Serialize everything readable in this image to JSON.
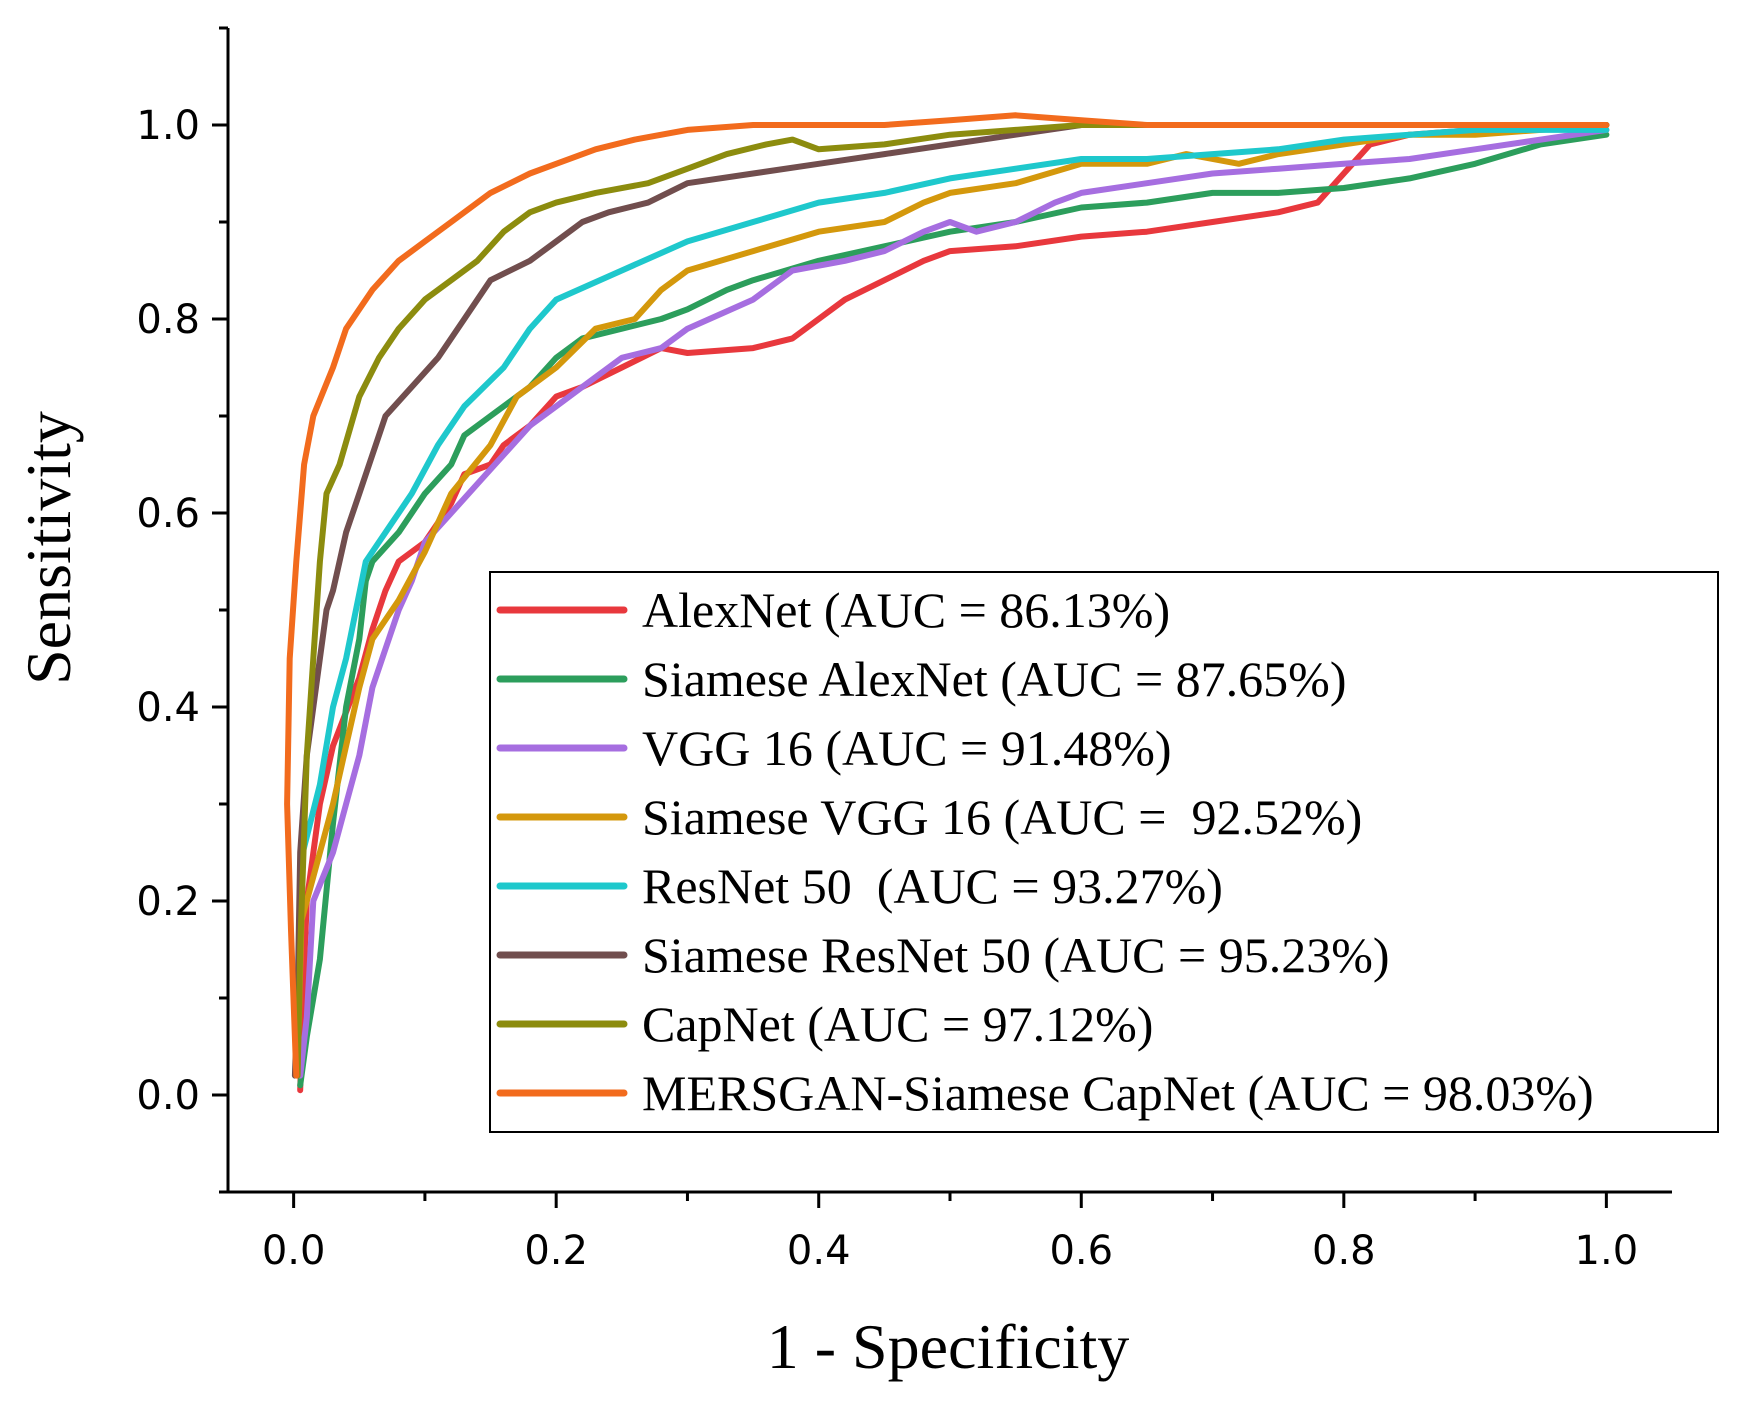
{
  "chart_data": {
    "type": "line",
    "title": "",
    "xlabel": "1 - Specificity",
    "ylabel": "Sensitivity",
    "xlim": [
      -0.05,
      1.05
    ],
    "ylim": [
      -0.1,
      1.1
    ],
    "xticks": [
      0.0,
      0.2,
      0.4,
      0.6,
      0.8,
      1.0
    ],
    "yticks": [
      0.0,
      0.2,
      0.4,
      0.6,
      0.8,
      1.0
    ],
    "xtick_labels": [
      "0.0",
      "0.2",
      "0.4",
      "0.6",
      "0.8",
      "1.0"
    ],
    "ytick_labels": [
      "0.0",
      "0.2",
      "0.4",
      "0.6",
      "0.8",
      "1.0"
    ],
    "grid": false,
    "legend_position": "center-right",
    "series": [
      {
        "name": "AlexNet (AUC = 86.13%)",
        "color": "#e8383d",
        "points": [
          [
            0.005,
            0.005
          ],
          [
            0.007,
            0.1
          ],
          [
            0.01,
            0.2
          ],
          [
            0.02,
            0.3
          ],
          [
            0.03,
            0.36
          ],
          [
            0.05,
            0.43
          ],
          [
            0.06,
            0.48
          ],
          [
            0.07,
            0.52
          ],
          [
            0.08,
            0.55
          ],
          [
            0.1,
            0.57
          ],
          [
            0.12,
            0.61
          ],
          [
            0.13,
            0.64
          ],
          [
            0.15,
            0.65
          ],
          [
            0.16,
            0.67
          ],
          [
            0.18,
            0.69
          ],
          [
            0.2,
            0.72
          ],
          [
            0.22,
            0.73
          ],
          [
            0.25,
            0.75
          ],
          [
            0.28,
            0.77
          ],
          [
            0.3,
            0.765
          ],
          [
            0.35,
            0.77
          ],
          [
            0.38,
            0.78
          ],
          [
            0.4,
            0.8
          ],
          [
            0.42,
            0.82
          ],
          [
            0.45,
            0.84
          ],
          [
            0.48,
            0.86
          ],
          [
            0.5,
            0.87
          ],
          [
            0.55,
            0.875
          ],
          [
            0.6,
            0.885
          ],
          [
            0.65,
            0.89
          ],
          [
            0.7,
            0.9
          ],
          [
            0.75,
            0.91
          ],
          [
            0.78,
            0.92
          ],
          [
            0.8,
            0.95
          ],
          [
            0.82,
            0.98
          ],
          [
            0.85,
            0.99
          ],
          [
            0.9,
            0.995
          ],
          [
            1.0,
            1.0
          ]
        ]
      },
      {
        "name": "Siamese AlexNet (AUC = 87.65%)",
        "color": "#2c9e5c",
        "points": [
          [
            0.005,
            0.01
          ],
          [
            0.01,
            0.06
          ],
          [
            0.02,
            0.14
          ],
          [
            0.03,
            0.28
          ],
          [
            0.04,
            0.4
          ],
          [
            0.05,
            0.47
          ],
          [
            0.055,
            0.53
          ],
          [
            0.06,
            0.55
          ],
          [
            0.08,
            0.58
          ],
          [
            0.1,
            0.62
          ],
          [
            0.12,
            0.65
          ],
          [
            0.13,
            0.68
          ],
          [
            0.15,
            0.7
          ],
          [
            0.18,
            0.73
          ],
          [
            0.2,
            0.76
          ],
          [
            0.22,
            0.78
          ],
          [
            0.25,
            0.79
          ],
          [
            0.28,
            0.8
          ],
          [
            0.3,
            0.81
          ],
          [
            0.33,
            0.83
          ],
          [
            0.35,
            0.84
          ],
          [
            0.4,
            0.86
          ],
          [
            0.45,
            0.875
          ],
          [
            0.5,
            0.89
          ],
          [
            0.55,
            0.9
          ],
          [
            0.6,
            0.915
          ],
          [
            0.65,
            0.92
          ],
          [
            0.7,
            0.93
          ],
          [
            0.75,
            0.93
          ],
          [
            0.8,
            0.935
          ],
          [
            0.85,
            0.945
          ],
          [
            0.9,
            0.96
          ],
          [
            0.95,
            0.98
          ],
          [
            1.0,
            0.99
          ]
        ]
      },
      {
        "name": "VGG 16 (AUC = 91.48%)",
        "color": "#a66ee0",
        "points": [
          [
            0.005,
            0.02
          ],
          [
            0.01,
            0.08
          ],
          [
            0.015,
            0.2
          ],
          [
            0.03,
            0.25
          ],
          [
            0.04,
            0.3
          ],
          [
            0.05,
            0.35
          ],
          [
            0.06,
            0.42
          ],
          [
            0.07,
            0.46
          ],
          [
            0.08,
            0.5
          ],
          [
            0.09,
            0.53
          ],
          [
            0.1,
            0.57
          ],
          [
            0.12,
            0.6
          ],
          [
            0.14,
            0.63
          ],
          [
            0.16,
            0.66
          ],
          [
            0.18,
            0.69
          ],
          [
            0.2,
            0.71
          ],
          [
            0.22,
            0.73
          ],
          [
            0.25,
            0.76
          ],
          [
            0.28,
            0.77
          ],
          [
            0.3,
            0.79
          ],
          [
            0.35,
            0.82
          ],
          [
            0.38,
            0.85
          ],
          [
            0.42,
            0.86
          ],
          [
            0.45,
            0.87
          ],
          [
            0.48,
            0.89
          ],
          [
            0.5,
            0.9
          ],
          [
            0.52,
            0.89
          ],
          [
            0.55,
            0.9
          ],
          [
            0.58,
            0.92
          ],
          [
            0.6,
            0.93
          ],
          [
            0.65,
            0.94
          ],
          [
            0.7,
            0.95
          ],
          [
            0.75,
            0.955
          ],
          [
            0.8,
            0.96
          ],
          [
            0.85,
            0.965
          ],
          [
            0.9,
            0.975
          ],
          [
            0.95,
            0.985
          ],
          [
            1.0,
            0.995
          ]
        ]
      },
      {
        "name": "Siamese VGG 16 (AUC =  92.52%)",
        "color": "#d4980c",
        "points": [
          [
            0.003,
            0.03
          ],
          [
            0.006,
            0.18
          ],
          [
            0.02,
            0.25
          ],
          [
            0.03,
            0.3
          ],
          [
            0.04,
            0.36
          ],
          [
            0.05,
            0.42
          ],
          [
            0.06,
            0.47
          ],
          [
            0.08,
            0.51
          ],
          [
            0.1,
            0.56
          ],
          [
            0.12,
            0.62
          ],
          [
            0.15,
            0.67
          ],
          [
            0.17,
            0.72
          ],
          [
            0.2,
            0.75
          ],
          [
            0.23,
            0.79
          ],
          [
            0.26,
            0.8
          ],
          [
            0.28,
            0.83
          ],
          [
            0.3,
            0.85
          ],
          [
            0.35,
            0.87
          ],
          [
            0.4,
            0.89
          ],
          [
            0.45,
            0.9
          ],
          [
            0.48,
            0.92
          ],
          [
            0.5,
            0.93
          ],
          [
            0.55,
            0.94
          ],
          [
            0.6,
            0.96
          ],
          [
            0.65,
            0.96
          ],
          [
            0.68,
            0.97
          ],
          [
            0.72,
            0.96
          ],
          [
            0.75,
            0.97
          ],
          [
            0.8,
            0.98
          ],
          [
            0.85,
            0.99
          ],
          [
            0.9,
            0.99
          ],
          [
            0.95,
            0.995
          ],
          [
            1.0,
            1.0
          ]
        ]
      },
      {
        "name": "ResNet 50  (AUC = 93.27%)",
        "color": "#1ec8cc",
        "points": [
          [
            0.003,
            0.1
          ],
          [
            0.007,
            0.25
          ],
          [
            0.02,
            0.32
          ],
          [
            0.03,
            0.4
          ],
          [
            0.04,
            0.45
          ],
          [
            0.055,
            0.55
          ],
          [
            0.07,
            0.58
          ],
          [
            0.09,
            0.62
          ],
          [
            0.11,
            0.67
          ],
          [
            0.13,
            0.71
          ],
          [
            0.16,
            0.75
          ],
          [
            0.18,
            0.79
          ],
          [
            0.2,
            0.82
          ],
          [
            0.25,
            0.85
          ],
          [
            0.3,
            0.88
          ],
          [
            0.35,
            0.9
          ],
          [
            0.4,
            0.92
          ],
          [
            0.45,
            0.93
          ],
          [
            0.5,
            0.945
          ],
          [
            0.55,
            0.955
          ],
          [
            0.6,
            0.965
          ],
          [
            0.65,
            0.965
          ],
          [
            0.7,
            0.97
          ],
          [
            0.75,
            0.975
          ],
          [
            0.8,
            0.985
          ],
          [
            0.85,
            0.99
          ],
          [
            0.9,
            0.995
          ],
          [
            1.0,
            0.995
          ]
        ]
      },
      {
        "name": "Siamese ResNet 50 (AUC = 95.23%)",
        "color": "#714e4e",
        "points": [
          [
            0.001,
            0.02
          ],
          [
            0.003,
            0.1
          ],
          [
            0.005,
            0.25
          ],
          [
            0.01,
            0.35
          ],
          [
            0.02,
            0.45
          ],
          [
            0.025,
            0.5
          ],
          [
            0.03,
            0.52
          ],
          [
            0.04,
            0.58
          ],
          [
            0.05,
            0.62
          ],
          [
            0.06,
            0.66
          ],
          [
            0.07,
            0.7
          ],
          [
            0.09,
            0.73
          ],
          [
            0.11,
            0.76
          ],
          [
            0.13,
            0.8
          ],
          [
            0.15,
            0.84
          ],
          [
            0.18,
            0.86
          ],
          [
            0.2,
            0.88
          ],
          [
            0.22,
            0.9
          ],
          [
            0.24,
            0.91
          ],
          [
            0.27,
            0.92
          ],
          [
            0.3,
            0.94
          ],
          [
            0.35,
            0.95
          ],
          [
            0.4,
            0.96
          ],
          [
            0.45,
            0.97
          ],
          [
            0.5,
            0.98
          ],
          [
            0.55,
            0.99
          ],
          [
            0.6,
            1.0
          ],
          [
            0.7,
            1.0
          ],
          [
            0.8,
            1.0
          ],
          [
            0.9,
            1.0
          ],
          [
            1.0,
            1.0
          ]
        ]
      },
      {
        "name": "CapNet (AUC = 97.12%)",
        "color": "#8c8c0e",
        "points": [
          [
            0.003,
            0.02
          ],
          [
            0.005,
            0.15
          ],
          [
            0.01,
            0.35
          ],
          [
            0.015,
            0.45
          ],
          [
            0.02,
            0.55
          ],
          [
            0.025,
            0.62
          ],
          [
            0.035,
            0.65
          ],
          [
            0.05,
            0.72
          ],
          [
            0.065,
            0.76
          ],
          [
            0.08,
            0.79
          ],
          [
            0.1,
            0.82
          ],
          [
            0.12,
            0.84
          ],
          [
            0.14,
            0.86
          ],
          [
            0.16,
            0.89
          ],
          [
            0.18,
            0.91
          ],
          [
            0.2,
            0.92
          ],
          [
            0.23,
            0.93
          ],
          [
            0.27,
            0.94
          ],
          [
            0.3,
            0.955
          ],
          [
            0.33,
            0.97
          ],
          [
            0.36,
            0.98
          ],
          [
            0.38,
            0.985
          ],
          [
            0.4,
            0.975
          ],
          [
            0.45,
            0.98
          ],
          [
            0.5,
            0.99
          ],
          [
            0.55,
            0.995
          ],
          [
            0.6,
            1.0
          ],
          [
            0.8,
            1.0
          ],
          [
            1.0,
            1.0
          ]
        ]
      },
      {
        "name": "MERSGAN-Siamese CapNet (AUC = 98.03%)",
        "color": "#f26b1d",
        "points": [
          [
            0.002,
            0.02
          ],
          [
            -0.002,
            0.17
          ],
          [
            -0.005,
            0.3
          ],
          [
            -0.003,
            0.45
          ],
          [
            0.002,
            0.55
          ],
          [
            0.008,
            0.65
          ],
          [
            0.015,
            0.7
          ],
          [
            0.03,
            0.75
          ],
          [
            0.04,
            0.79
          ],
          [
            0.06,
            0.83
          ],
          [
            0.08,
            0.86
          ],
          [
            0.1,
            0.88
          ],
          [
            0.12,
            0.9
          ],
          [
            0.15,
            0.93
          ],
          [
            0.18,
            0.95
          ],
          [
            0.2,
            0.96
          ],
          [
            0.23,
            0.975
          ],
          [
            0.26,
            0.985
          ],
          [
            0.3,
            0.995
          ],
          [
            0.35,
            1.0
          ],
          [
            0.4,
            1.0
          ],
          [
            0.45,
            1.0
          ],
          [
            0.5,
            1.005
          ],
          [
            0.55,
            1.01
          ],
          [
            0.6,
            1.005
          ],
          [
            0.65,
            1.0
          ],
          [
            0.7,
            1.0
          ],
          [
            0.8,
            1.0
          ],
          [
            0.9,
            1.0
          ],
          [
            1.0,
            1.0
          ]
        ]
      }
    ]
  }
}
